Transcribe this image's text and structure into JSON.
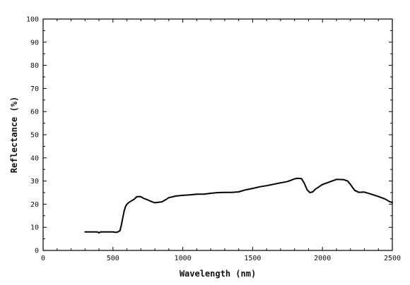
{
  "chart_data": {
    "type": "line",
    "title": "",
    "xlabel": "Wavelength (nm)",
    "ylabel": "Reflectance (%)",
    "xlim": [
      0,
      2500
    ],
    "ylim": [
      0,
      100
    ],
    "xticks": [
      0,
      500,
      1000,
      1500,
      2000,
      2500
    ],
    "yticks": [
      0,
      10,
      20,
      30,
      40,
      50,
      60,
      70,
      80,
      90,
      100
    ],
    "grid": false,
    "legend": "none",
    "line_color": "#000000",
    "series": [
      {
        "x": [
          300,
          350,
          390,
          400,
          410,
          450,
          500,
          520,
          530,
          550,
          560,
          570,
          580,
          590,
          600,
          620,
          650,
          670,
          690,
          700,
          720,
          750,
          780,
          800,
          850,
          880,
          900,
          950,
          1000,
          1050,
          1100,
          1150,
          1200,
          1250,
          1300,
          1350,
          1400,
          1450,
          1500,
          1550,
          1600,
          1650,
          1700,
          1750,
          1800,
          1820,
          1850,
          1870,
          1890,
          1910,
          1930,
          1950,
          2000,
          2050,
          2100,
          2150,
          2180,
          2200,
          2230,
          2260,
          2300,
          2350,
          2400,
          2450,
          2480,
          2500
        ],
        "y": [
          8,
          8,
          8,
          7.6,
          8,
          8,
          8,
          7.8,
          7.9,
          8.5,
          11,
          14,
          17,
          19,
          20,
          21,
          22,
          23.2,
          23.3,
          23.2,
          22.5,
          21.8,
          21,
          20.6,
          21,
          22,
          22.8,
          23.5,
          23.8,
          24,
          24.3,
          24.3,
          24.7,
          25,
          25.1,
          25.1,
          25.3,
          26.2,
          26.8,
          27.5,
          28,
          28.6,
          29.2,
          29.8,
          30.9,
          31.2,
          31,
          29,
          26.2,
          25,
          25.3,
          26.5,
          28.5,
          29.6,
          30.7,
          30.6,
          30,
          28.5,
          26,
          25.1,
          25.2,
          24.3,
          23.3,
          22.2,
          21.1,
          20.7
        ]
      }
    ]
  }
}
